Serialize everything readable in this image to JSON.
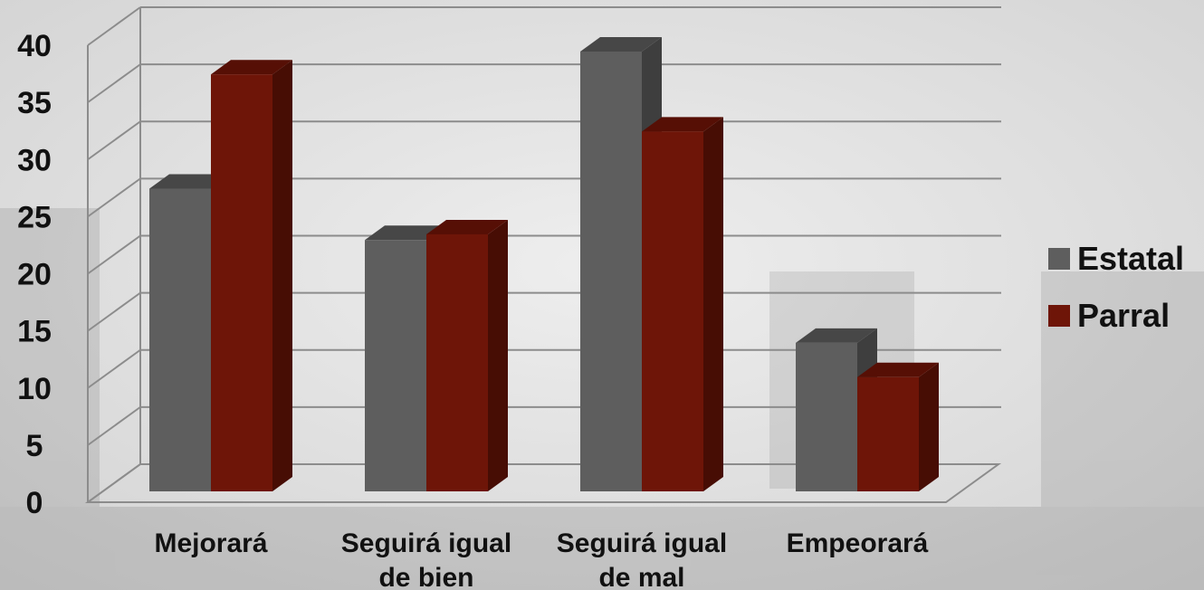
{
  "chart_data": {
    "type": "bar",
    "categories": [
      [
        "Mejorará"
      ],
      [
        "Seguirá igual",
        "de bien"
      ],
      [
        "Seguirá igual",
        "de mal"
      ],
      [
        "Empeorará"
      ]
    ],
    "series": [
      {
        "name": "Estatal",
        "values": [
          26.5,
          22,
          38.5,
          13
        ],
        "color": "#5e5e5e",
        "side_color": "#3e3e3e",
        "top_color": "#474747"
      },
      {
        "name": "Parral",
        "values": [
          36.5,
          22.5,
          31.5,
          10
        ],
        "color": "#6e1508",
        "side_color": "#470d04",
        "top_color": "#560f05"
      }
    ],
    "y_ticks": [
      "0",
      "5",
      "10",
      "15",
      "20",
      "25",
      "30",
      "35",
      "40"
    ],
    "ylim": [
      0,
      40
    ],
    "grid": true,
    "legend_position": "right",
    "title": "",
    "xlabel": "",
    "ylabel": ""
  }
}
